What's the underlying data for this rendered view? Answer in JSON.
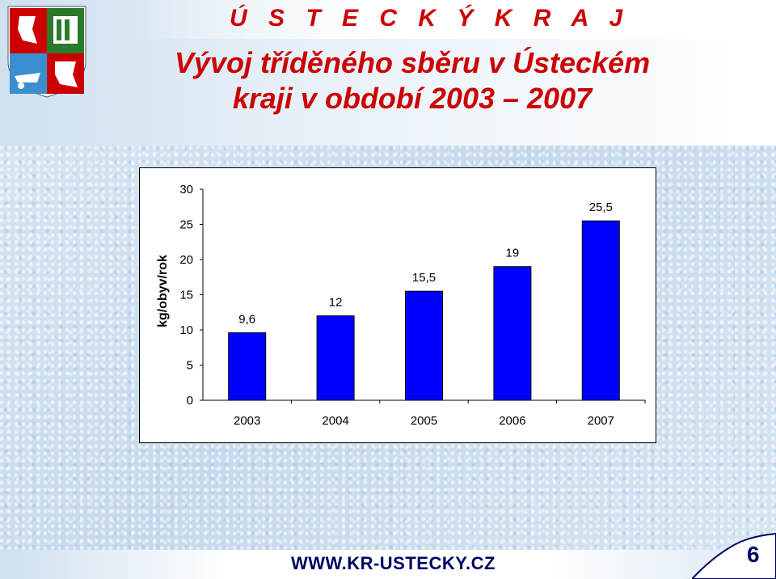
{
  "header": {
    "region_name": "Ú S T E C K Ý   K R A J",
    "title_line1": "Vývoj tříděného sběru v Ústeckém",
    "title_line2": "kraji v období 2003 – 2007"
  },
  "footer": {
    "url": "WWW.KR-USTECKY.CZ",
    "page_number": "6"
  },
  "colors": {
    "title": "#cc0000",
    "bar_fill": "#0000ff",
    "bar_stroke": "#000000",
    "footer_text": "#000066"
  },
  "chart_data": {
    "type": "bar",
    "categories": [
      "2003",
      "2004",
      "2005",
      "2006",
      "2007"
    ],
    "values": [
      9.6,
      12,
      15.5,
      19,
      25.5
    ],
    "data_labels": [
      "9,6",
      "12",
      "15,5",
      "19",
      "25,5"
    ],
    "yticks": [
      "0",
      "5",
      "10",
      "15",
      "20",
      "25",
      "30"
    ],
    "ylim": [
      0,
      30
    ],
    "ylabel": "kg/obyv/rok",
    "xlabel": "",
    "grid": false,
    "legend": "none"
  }
}
